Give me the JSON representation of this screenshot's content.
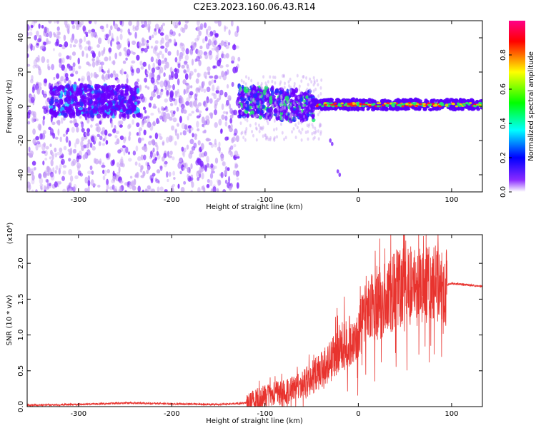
{
  "title": "C2E3.2023.160.06.43.R14",
  "colors": {
    "snr_line": "#e8332e",
    "spec_low": "#c9a6f5",
    "spec_mid": "#6a00ff",
    "colorbar_stops": [
      "#ffffff",
      "#7f00ff",
      "#0000ff",
      "#00ffff",
      "#00ff00",
      "#ffff00",
      "#ff0000",
      "#ff00aa"
    ]
  },
  "chart_data": [
    {
      "type": "heatmap",
      "name": "spectrogram",
      "xlabel": "Height of straight line (km)",
      "ylabel": "Frequency (Hz)",
      "xlim": [
        -355,
        133
      ],
      "ylim": [
        -50,
        50
      ],
      "xticks": [
        -300,
        -200,
        -100,
        0,
        100
      ],
      "yticks": [
        -40,
        -20,
        0,
        20,
        40
      ],
      "colorbar": {
        "label": "Normalized spectral amplitude",
        "range": [
          0,
          1
        ],
        "ticks": [
          "0.0",
          "0.2",
          "0.4",
          "0.6",
          "0.8"
        ],
        "colormap": "rainbow"
      },
      "description_regions": [
        {
          "x_range": [
            -355,
            -128
          ],
          "freq_spread": [
            -50,
            50
          ],
          "level": "low scattered"
        },
        {
          "x_range": [
            -330,
            -240
          ],
          "freq_spread": [
            -5,
            10
          ],
          "level": "mid"
        },
        {
          "x_range": [
            -128,
            -50
          ],
          "freq_spread": [
            -15,
            12
          ],
          "level": "mid-high"
        },
        {
          "x_range": [
            -50,
            133
          ],
          "freq_spread": [
            -2,
            4
          ],
          "level": "high, narrow band near 0 Hz"
        }
      ]
    },
    {
      "type": "line",
      "name": "snr",
      "xlabel": "Height of straight line (km)",
      "ylabel": "SNR (10 * v/v)",
      "multiplier": "(x10⁴)",
      "xlim": [
        -355,
        133
      ],
      "ylim": [
        0,
        2.4
      ],
      "xticks": [
        -300,
        -200,
        -100,
        0,
        100
      ],
      "yticks": [
        "0.0",
        "0.5",
        "1.0",
        "1.5",
        "2.0"
      ],
      "series": [
        {
          "x": [
            -355,
            -300,
            -250,
            -200,
            -150,
            -120,
            -100,
            -80,
            -60,
            -40,
            -20,
            0,
            10,
            20,
            30,
            40,
            60,
            80,
            95,
            100,
            133
          ],
          "y": [
            0.02,
            0.03,
            0.05,
            0.04,
            0.03,
            0.05,
            0.15,
            0.2,
            0.3,
            0.5,
            0.8,
            1.0,
            1.35,
            1.45,
            1.5,
            1.65,
            1.7,
            1.72,
            1.7,
            1.72,
            1.68
          ]
        }
      ]
    }
  ]
}
